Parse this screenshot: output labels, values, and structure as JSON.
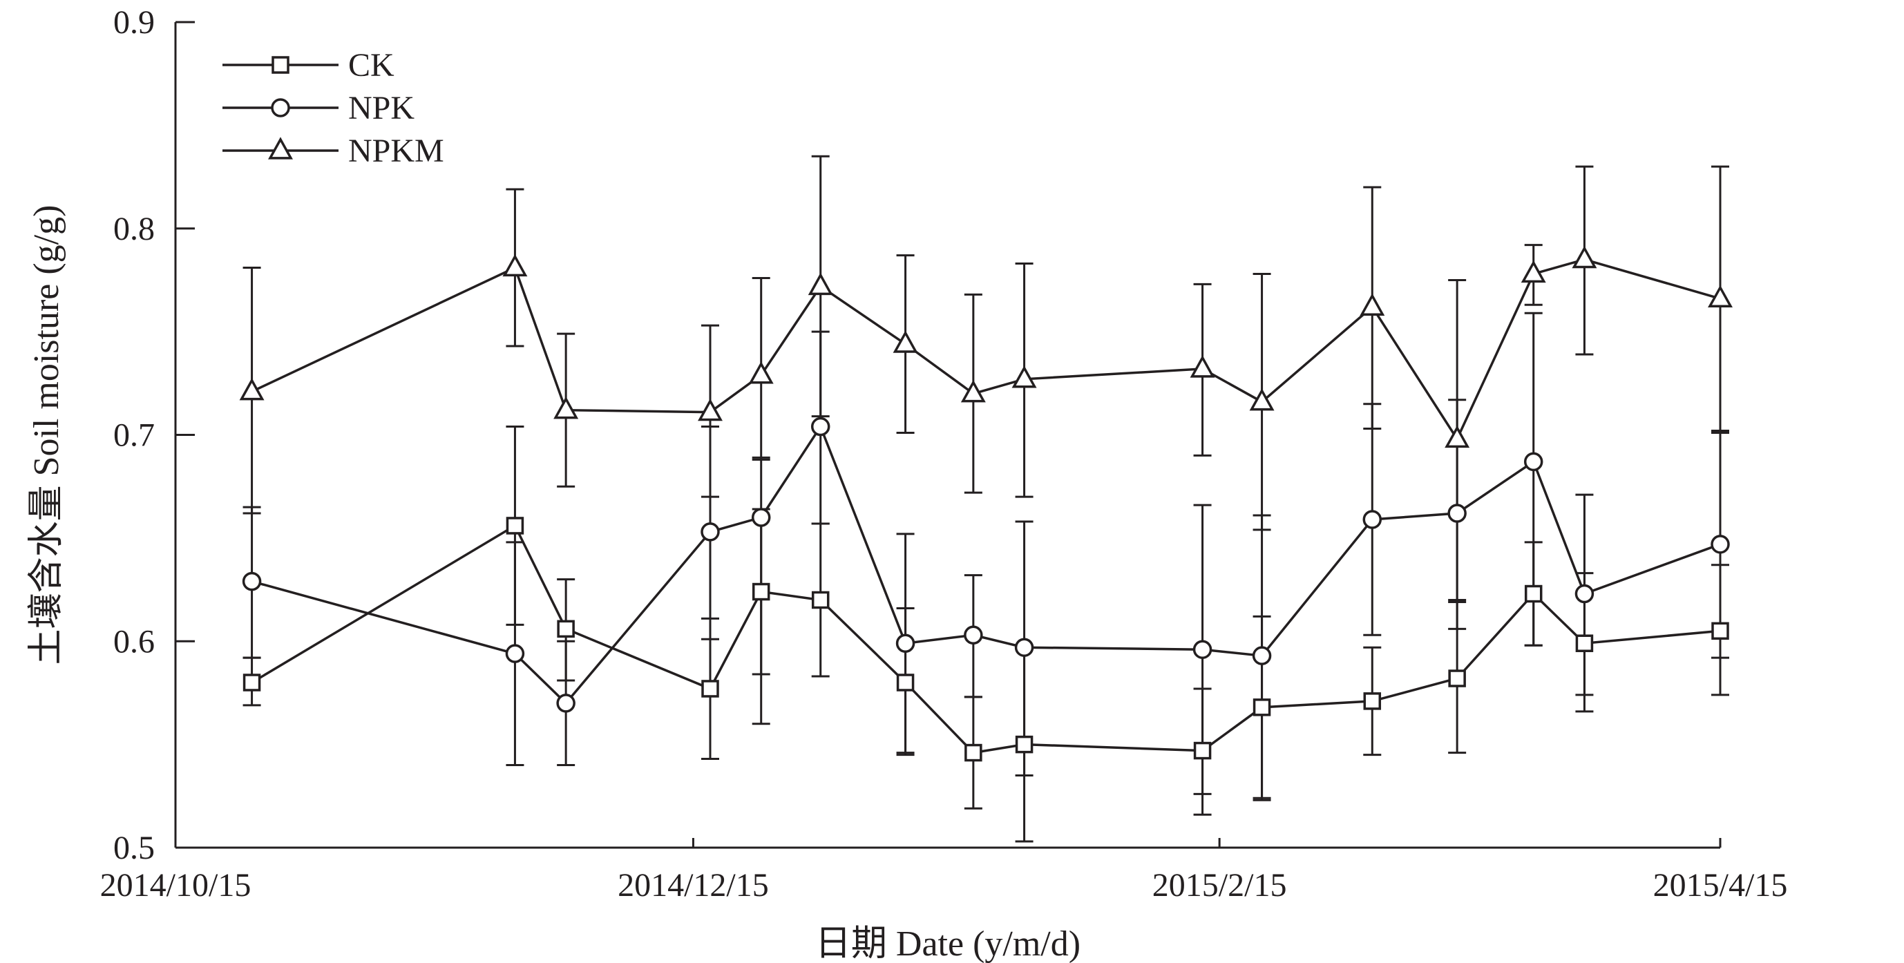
{
  "chart_data": {
    "type": "line",
    "xlabel": "日期 Date (y/m/d)",
    "ylabel": "土壤含水量 Soil moisture (g/g)",
    "ylim": [
      0.5,
      0.9
    ],
    "xlim": [
      "2014-10-15",
      "2015-04-15"
    ],
    "x_tick_labels": [
      "2014/10/15",
      "2014/12/15",
      "2015/2/15",
      "2015/4/15"
    ],
    "x_tick_dates": [
      "2014-10-15",
      "2014-12-15",
      "2015-02-15",
      "2015-04-15"
    ],
    "y_tick_labels": [
      "0.5",
      "0.6",
      "0.7",
      "0.8",
      "0.9"
    ],
    "y_tick_values": [
      0.5,
      0.6,
      0.7,
      0.8,
      0.9
    ],
    "legend_position": "top-left",
    "x": [
      "2014-10-24",
      "2014-11-24",
      "2014-11-30",
      "2014-12-17",
      "2014-12-23",
      "2014-12-30",
      "2015-01-09",
      "2015-01-17",
      "2015-01-23",
      "2015-02-13",
      "2015-02-20",
      "2015-03-05",
      "2015-03-15",
      "2015-03-24",
      "2015-03-30",
      "2015-04-15"
    ],
    "series": [
      {
        "name": "CK",
        "marker": "square",
        "y": [
          0.58,
          0.656,
          0.606,
          0.577,
          0.624,
          0.62,
          0.58,
          0.546,
          0.55,
          0.547,
          0.568,
          0.571,
          0.582,
          0.623,
          0.599,
          0.605
        ],
        "err_low": [
          0.569,
          0.608,
          0.581,
          0.543,
          0.584,
          0.583,
          0.545,
          0.519,
          0.503,
          0.526,
          0.523,
          0.545,
          0.546,
          0.598,
          0.566,
          0.574
        ],
        "err_high": [
          0.592,
          0.704,
          0.63,
          0.611,
          0.664,
          0.657,
          0.616,
          0.573,
          0.598,
          0.577,
          0.612,
          0.597,
          0.619,
          0.648,
          0.633,
          0.637
        ]
      },
      {
        "name": "NPK",
        "marker": "circle",
        "y": [
          0.629,
          0.594,
          0.57,
          0.653,
          0.66,
          0.704,
          0.599,
          0.603,
          0.597,
          0.596,
          0.593,
          0.659,
          0.662,
          0.687,
          0.623,
          0.647
        ],
        "err_low": [
          0.592,
          0.54,
          0.54,
          0.601,
          0.56,
          0.657,
          0.546,
          0.573,
          0.535,
          0.516,
          0.524,
          0.603,
          0.606,
          0.598,
          0.574,
          0.592
        ],
        "err_high": [
          0.665,
          0.648,
          0.6,
          0.704,
          0.689,
          0.75,
          0.652,
          0.632,
          0.658,
          0.666,
          0.661,
          0.715,
          0.717,
          0.759,
          0.671,
          0.701
        ]
      },
      {
        "name": "NPKM",
        "marker": "triangle",
        "y": [
          0.721,
          0.781,
          0.712,
          0.711,
          0.729,
          0.772,
          0.744,
          0.72,
          0.727,
          0.732,
          0.716,
          0.762,
          0.698,
          0.778,
          0.785,
          0.766
        ],
        "err_low": [
          0.662,
          0.743,
          0.675,
          0.67,
          0.688,
          0.709,
          0.701,
          0.672,
          0.67,
          0.69,
          0.654,
          0.703,
          0.62,
          0.763,
          0.739,
          0.702
        ],
        "err_high": [
          0.781,
          0.819,
          0.749,
          0.753,
          0.776,
          0.835,
          0.787,
          0.768,
          0.783,
          0.773,
          0.778,
          0.82,
          0.775,
          0.792,
          0.83,
          0.83
        ]
      }
    ]
  }
}
